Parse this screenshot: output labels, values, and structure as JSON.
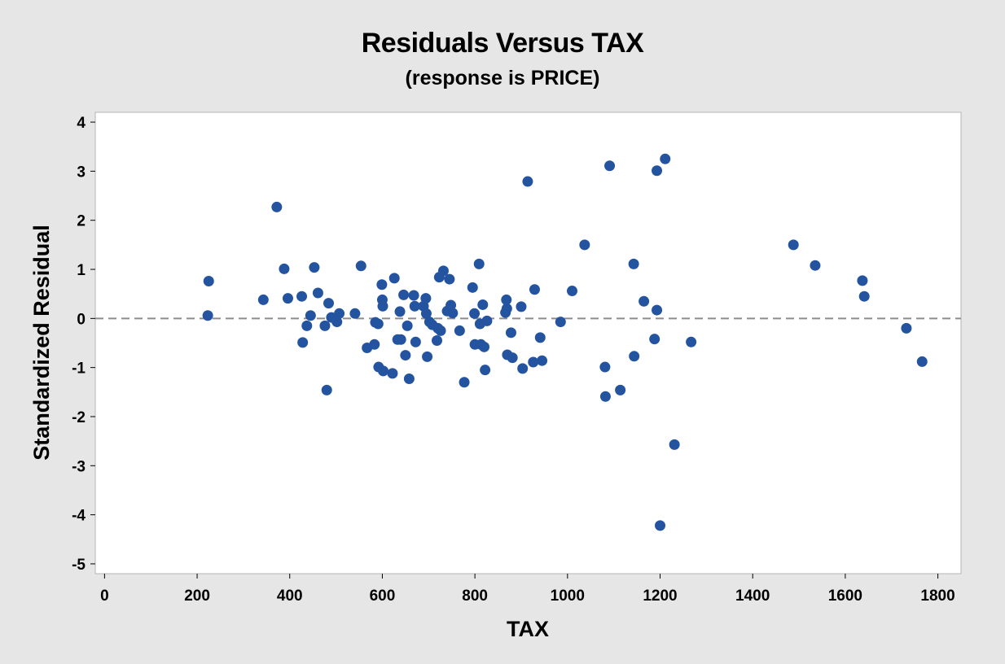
{
  "chart_data": {
    "type": "scatter",
    "title": "Residuals Versus TAX",
    "subtitle": "(response is PRICE)",
    "xlabel": "TAX",
    "ylabel": "Standardized Residual",
    "xlim": [
      -20,
      1850
    ],
    "ylim": [
      -5.2,
      4.2
    ],
    "xticks": [
      0,
      200,
      400,
      600,
      800,
      1000,
      1200,
      1400,
      1600,
      1800
    ],
    "yticks": [
      -5,
      -4,
      -3,
      -2,
      -1,
      0,
      1,
      2,
      3,
      4
    ],
    "reference_line": 0,
    "grid": false,
    "colors": {
      "point": "#2454a0",
      "reference_line": "#8c8c8c",
      "plot_background": "#ffffff",
      "figure_background": "#e6e6e6"
    },
    "points": [
      {
        "x": 223,
        "y": 0.06
      },
      {
        "x": 225,
        "y": 0.76
      },
      {
        "x": 343,
        "y": 0.38
      },
      {
        "x": 372,
        "y": 2.27
      },
      {
        "x": 388,
        "y": 1.01
      },
      {
        "x": 396,
        "y": 0.41
      },
      {
        "x": 426,
        "y": 0.45
      },
      {
        "x": 428,
        "y": -0.49
      },
      {
        "x": 437,
        "y": -0.15
      },
      {
        "x": 445,
        "y": 0.06
      },
      {
        "x": 453,
        "y": 1.04
      },
      {
        "x": 461,
        "y": 0.52
      },
      {
        "x": 476,
        "y": -0.15
      },
      {
        "x": 480,
        "y": -1.46
      },
      {
        "x": 484,
        "y": 0.31
      },
      {
        "x": 490,
        "y": 0.02
      },
      {
        "x": 502,
        "y": -0.07
      },
      {
        "x": 507,
        "y": 0.1
      },
      {
        "x": 541,
        "y": 0.1
      },
      {
        "x": 554,
        "y": 1.07
      },
      {
        "x": 567,
        "y": -0.6
      },
      {
        "x": 583,
        "y": -0.53
      },
      {
        "x": 585,
        "y": -0.08
      },
      {
        "x": 591,
        "y": -0.11
      },
      {
        "x": 592,
        "y": -0.99
      },
      {
        "x": 599,
        "y": 0.69
      },
      {
        "x": 600,
        "y": 0.38
      },
      {
        "x": 601,
        "y": 0.25
      },
      {
        "x": 602,
        "y": -1.07
      },
      {
        "x": 622,
        "y": -1.12
      },
      {
        "x": 626,
        "y": 0.82
      },
      {
        "x": 633,
        "y": -0.43
      },
      {
        "x": 638,
        "y": 0.14
      },
      {
        "x": 640,
        "y": -0.43
      },
      {
        "x": 646,
        "y": 0.48
      },
      {
        "x": 650,
        "y": -0.75
      },
      {
        "x": 654,
        "y": -0.15
      },
      {
        "x": 658,
        "y": -1.23
      },
      {
        "x": 668,
        "y": 0.47
      },
      {
        "x": 670,
        "y": 0.25
      },
      {
        "x": 672,
        "y": -0.48
      },
      {
        "x": 689,
        "y": 0.25
      },
      {
        "x": 694,
        "y": 0.41
      },
      {
        "x": 695,
        "y": 0.1
      },
      {
        "x": 697,
        "y": -0.78
      },
      {
        "x": 702,
        "y": -0.07
      },
      {
        "x": 708,
        "y": -0.13
      },
      {
        "x": 718,
        "y": -0.45
      },
      {
        "x": 720,
        "y": -0.2
      },
      {
        "x": 723,
        "y": 0.84
      },
      {
        "x": 726,
        "y": -0.25
      },
      {
        "x": 732,
        "y": 0.97
      },
      {
        "x": 740,
        "y": 0.15
      },
      {
        "x": 745,
        "y": 0.8
      },
      {
        "x": 748,
        "y": 0.27
      },
      {
        "x": 752,
        "y": 0.11
      },
      {
        "x": 767,
        "y": -0.25
      },
      {
        "x": 777,
        "y": -1.3
      },
      {
        "x": 795,
        "y": 0.63
      },
      {
        "x": 799,
        "y": 0.1
      },
      {
        "x": 800,
        "y": -0.53
      },
      {
        "x": 809,
        "y": 1.11
      },
      {
        "x": 811,
        "y": -0.11
      },
      {
        "x": 813,
        "y": -0.53
      },
      {
        "x": 817,
        "y": 0.28
      },
      {
        "x": 820,
        "y": -0.58
      },
      {
        "x": 822,
        "y": -1.05
      },
      {
        "x": 826,
        "y": -0.05
      },
      {
        "x": 866,
        "y": 0.12
      },
      {
        "x": 868,
        "y": 0.38
      },
      {
        "x": 869,
        "y": 0.2
      },
      {
        "x": 870,
        "y": -0.74
      },
      {
        "x": 878,
        "y": -0.29
      },
      {
        "x": 881,
        "y": -0.8
      },
      {
        "x": 900,
        "y": 0.24
      },
      {
        "x": 903,
        "y": -1.02
      },
      {
        "x": 914,
        "y": 2.79
      },
      {
        "x": 926,
        "y": -0.89
      },
      {
        "x": 929,
        "y": 0.59
      },
      {
        "x": 941,
        "y": -0.39
      },
      {
        "x": 945,
        "y": -0.86
      },
      {
        "x": 985,
        "y": -0.07
      },
      {
        "x": 1010,
        "y": 0.56
      },
      {
        "x": 1037,
        "y": 1.5
      },
      {
        "x": 1081,
        "y": -0.99
      },
      {
        "x": 1082,
        "y": -1.59
      },
      {
        "x": 1091,
        "y": 3.11
      },
      {
        "x": 1114,
        "y": -1.46
      },
      {
        "x": 1143,
        "y": 1.11
      },
      {
        "x": 1144,
        "y": -0.77
      },
      {
        "x": 1165,
        "y": 0.35
      },
      {
        "x": 1188,
        "y": -0.42
      },
      {
        "x": 1193,
        "y": 3.01
      },
      {
        "x": 1193,
        "y": 0.17
      },
      {
        "x": 1200,
        "y": -4.22
      },
      {
        "x": 1211,
        "y": 3.25
      },
      {
        "x": 1231,
        "y": -2.57
      },
      {
        "x": 1267,
        "y": -0.48
      },
      {
        "x": 1488,
        "y": 1.5
      },
      {
        "x": 1535,
        "y": 1.08
      },
      {
        "x": 1637,
        "y": 0.77
      },
      {
        "x": 1641,
        "y": 0.45
      },
      {
        "x": 1732,
        "y": -0.2
      },
      {
        "x": 1766,
        "y": -0.88
      }
    ]
  }
}
